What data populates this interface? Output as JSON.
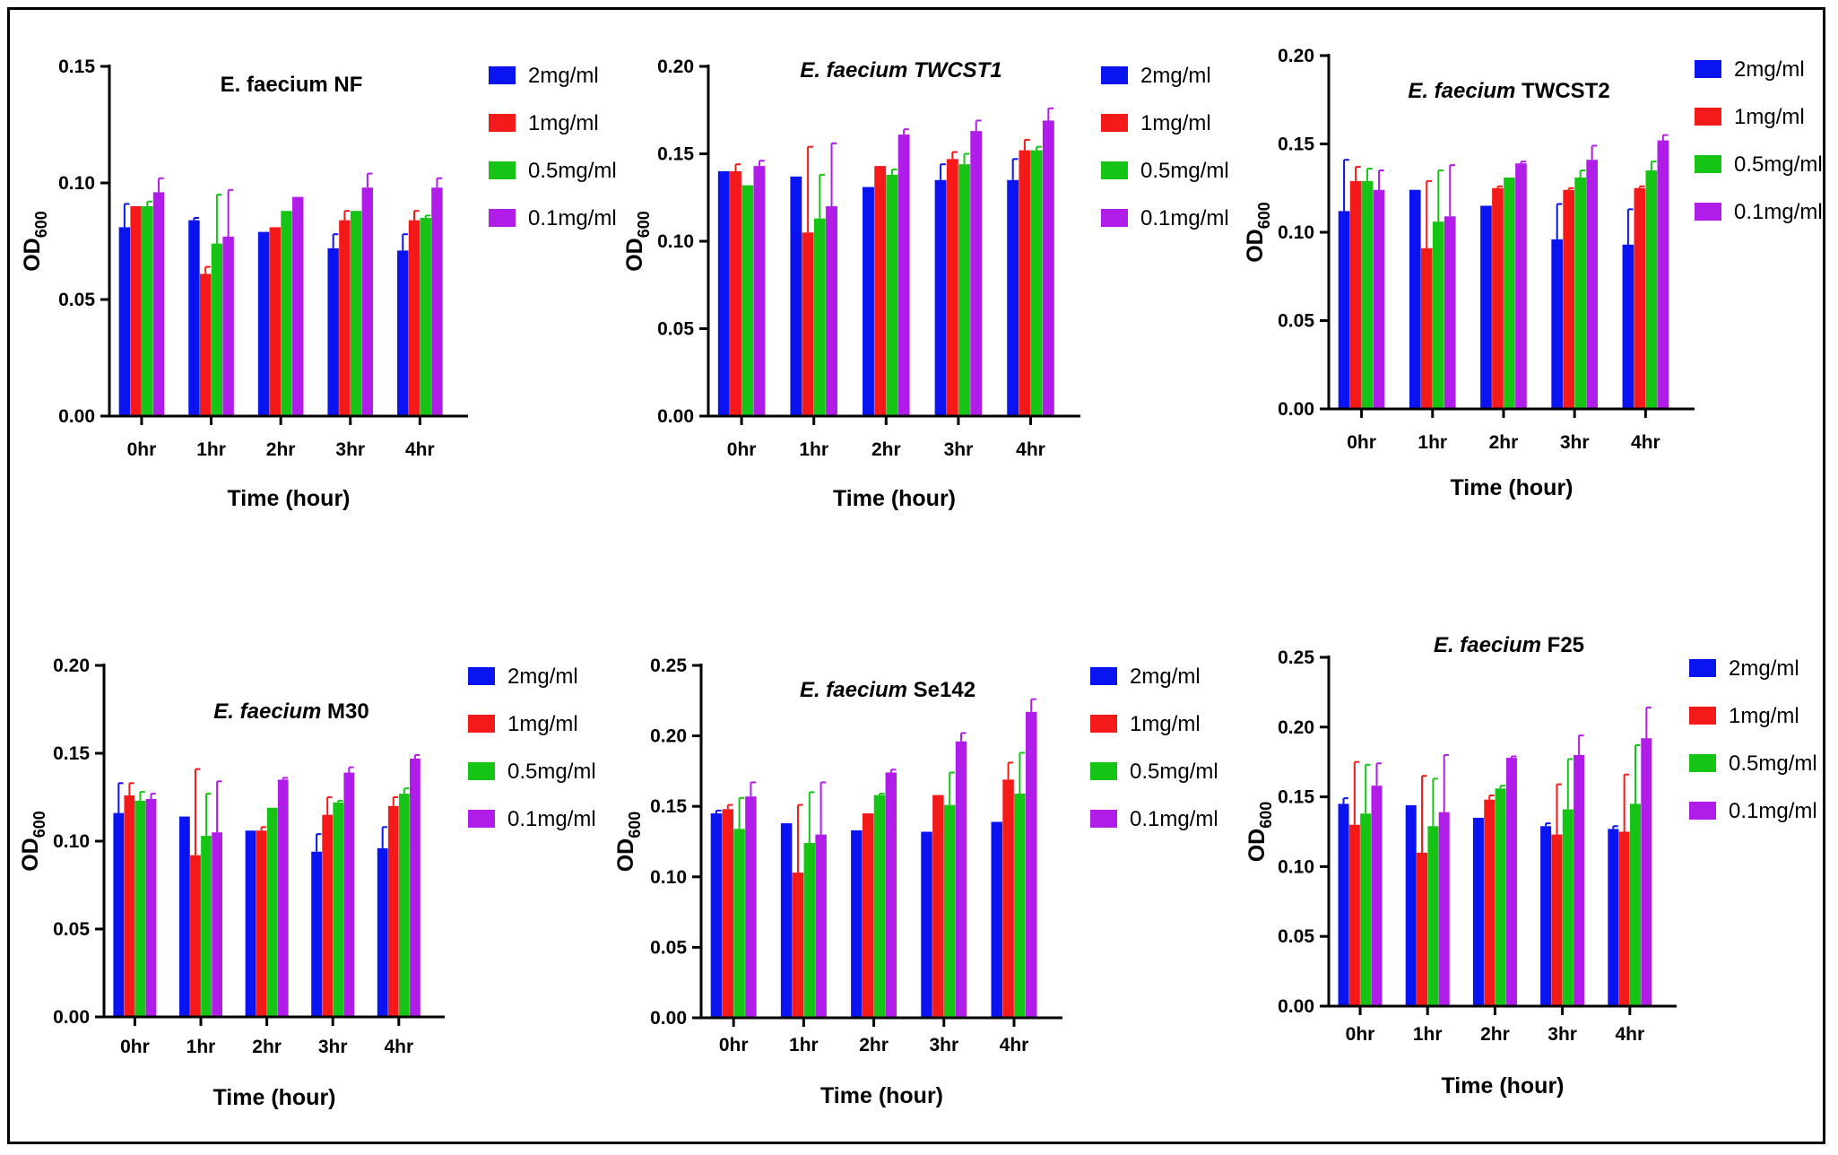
{
  "colors": {
    "2mg/ml": "#0a14f0",
    "1mg/ml": "#f51a1a",
    "0.5mg/ml": "#16c416",
    "0.1mg/ml": "#b01de8"
  },
  "chart_data": [
    {
      "type": "bar",
      "title": {
        "italic": "",
        "normal": "E. faecium NF"
      },
      "xlabel": "Time (hour)",
      "ylabel": "OD600",
      "categories": [
        "0hr",
        "1hr",
        "2hr",
        "3hr",
        "4hr"
      ],
      "ylim": [
        0,
        0.15
      ],
      "yticks": [
        "0.00",
        "0.05",
        "0.10",
        "0.15"
      ],
      "legend_position": "right",
      "series": [
        {
          "name": "2mg/ml",
          "values": [
            0.081,
            0.084,
            0.079,
            0.072,
            0.071
          ],
          "errors": [
            0.01,
            0.001,
            0.0,
            0.006,
            0.007
          ]
        },
        {
          "name": "1mg/ml",
          "values": [
            0.09,
            0.061,
            0.081,
            0.084,
            0.084
          ],
          "errors": [
            0.0,
            0.003,
            0.0,
            0.004,
            0.004
          ]
        },
        {
          "name": "0.5mg/ml",
          "values": [
            0.09,
            0.074,
            0.088,
            0.088,
            0.085
          ],
          "errors": [
            0.002,
            0.021,
            0.0,
            0.0,
            0.001
          ]
        },
        {
          "name": "0.1mg/ml",
          "values": [
            0.096,
            0.077,
            0.094,
            0.098,
            0.098
          ],
          "errors": [
            0.006,
            0.02,
            0.0,
            0.006,
            0.004
          ]
        }
      ]
    },
    {
      "type": "bar",
      "title": {
        "italic": "E. faecium TWCST1",
        "normal": ""
      },
      "xlabel": "Time (hour)",
      "ylabel": "OD600",
      "categories": [
        "0hr",
        "1hr",
        "2hr",
        "3hr",
        "4hr"
      ],
      "ylim": [
        0,
        0.2
      ],
      "yticks": [
        "0.00",
        "0.05",
        "0.10",
        "0.15",
        "0.20"
      ],
      "legend_position": "right",
      "series": [
        {
          "name": "2mg/ml",
          "values": [
            0.14,
            0.137,
            0.131,
            0.135,
            0.135
          ],
          "errors": [
            0.0,
            0.0,
            0.0,
            0.009,
            0.012
          ]
        },
        {
          "name": "1mg/ml",
          "values": [
            0.14,
            0.105,
            0.143,
            0.147,
            0.152
          ],
          "errors": [
            0.004,
            0.049,
            0.0,
            0.004,
            0.006
          ]
        },
        {
          "name": "0.5mg/ml",
          "values": [
            0.132,
            0.113,
            0.138,
            0.144,
            0.152
          ],
          "errors": [
            0.0,
            0.025,
            0.003,
            0.006,
            0.002
          ]
        },
        {
          "name": "0.1mg/ml",
          "values": [
            0.143,
            0.12,
            0.161,
            0.163,
            0.169
          ],
          "errors": [
            0.003,
            0.036,
            0.003,
            0.006,
            0.007
          ]
        }
      ]
    },
    {
      "type": "bar",
      "title": {
        "italic": "E. faecium",
        "normal": "TWCST2"
      },
      "xlabel": "Time (hour)",
      "ylabel": "OD600",
      "categories": [
        "0hr",
        "1hr",
        "2hr",
        "3hr",
        "4hr"
      ],
      "ylim": [
        0,
        0.2
      ],
      "yticks": [
        "0.00",
        "0.05",
        "0.10",
        "0.15",
        "0.20"
      ],
      "legend_position": "right",
      "series": [
        {
          "name": "2mg/ml",
          "values": [
            0.112,
            0.124,
            0.115,
            0.096,
            0.093
          ],
          "errors": [
            0.029,
            0.0,
            0.0,
            0.02,
            0.02
          ]
        },
        {
          "name": "1mg/ml",
          "values": [
            0.129,
            0.091,
            0.125,
            0.124,
            0.125
          ],
          "errors": [
            0.008,
            0.038,
            0.001,
            0.001,
            0.001
          ]
        },
        {
          "name": "0.5mg/ml",
          "values": [
            0.129,
            0.106,
            0.131,
            0.131,
            0.135
          ],
          "errors": [
            0.007,
            0.029,
            0.0,
            0.004,
            0.005
          ]
        },
        {
          "name": "0.1mg/ml",
          "values": [
            0.124,
            0.109,
            0.139,
            0.141,
            0.152
          ],
          "errors": [
            0.011,
            0.029,
            0.001,
            0.008,
            0.003
          ]
        }
      ]
    },
    {
      "type": "bar",
      "title": {
        "italic": "E. faecium",
        "normal": "M30"
      },
      "xlabel": "Time (hour)",
      "ylabel": "OD600",
      "categories": [
        "0hr",
        "1hr",
        "2hr",
        "3hr",
        "4hr"
      ],
      "ylim": [
        0,
        0.2
      ],
      "yticks": [
        "0.00",
        "0.05",
        "0.10",
        "0.15",
        "0.20"
      ],
      "legend_position": "right",
      "series": [
        {
          "name": "2mg/ml",
          "values": [
            0.116,
            0.114,
            0.106,
            0.094,
            0.096
          ],
          "errors": [
            0.017,
            0.0,
            0.0,
            0.01,
            0.012
          ]
        },
        {
          "name": "1mg/ml",
          "values": [
            0.126,
            0.092,
            0.106,
            0.115,
            0.12
          ],
          "errors": [
            0.007,
            0.049,
            0.002,
            0.01,
            0.005
          ]
        },
        {
          "name": "0.5mg/ml",
          "values": [
            0.123,
            0.103,
            0.119,
            0.122,
            0.127
          ],
          "errors": [
            0.005,
            0.024,
            0.0,
            0.001,
            0.003
          ]
        },
        {
          "name": "0.1mg/ml",
          "values": [
            0.124,
            0.105,
            0.135,
            0.139,
            0.147
          ],
          "errors": [
            0.003,
            0.029,
            0.001,
            0.003,
            0.002
          ]
        }
      ]
    },
    {
      "type": "bar",
      "title": {
        "italic": "E. faecium",
        "normal": "Se142"
      },
      "xlabel": "Time (hour)",
      "ylabel": "OD600",
      "categories": [
        "0hr",
        "1hr",
        "2hr",
        "3hr",
        "4hr"
      ],
      "ylim": [
        0,
        0.25
      ],
      "yticks": [
        "0.00",
        "0.05",
        "0.10",
        "0.15",
        "0.20",
        "0.25"
      ],
      "legend_position": "right",
      "series": [
        {
          "name": "2mg/ml",
          "values": [
            0.145,
            0.138,
            0.133,
            0.132,
            0.139
          ],
          "errors": [
            0.002,
            0.0,
            0.0,
            0.0,
            0.0
          ]
        },
        {
          "name": "1mg/ml",
          "values": [
            0.148,
            0.103,
            0.145,
            0.158,
            0.169
          ],
          "errors": [
            0.003,
            0.048,
            0.0,
            0.0,
            0.012
          ]
        },
        {
          "name": "0.5mg/ml",
          "values": [
            0.134,
            0.124,
            0.158,
            0.151,
            0.159
          ],
          "errors": [
            0.022,
            0.036,
            0.001,
            0.023,
            0.029
          ]
        },
        {
          "name": "0.1mg/ml",
          "values": [
            0.157,
            0.13,
            0.174,
            0.196,
            0.217
          ],
          "errors": [
            0.01,
            0.037,
            0.002,
            0.006,
            0.009
          ]
        }
      ]
    },
    {
      "type": "bar",
      "title": {
        "italic": "E. faecium",
        "normal": "F25"
      },
      "xlabel": "Time (hour)",
      "ylabel": "OD600",
      "categories": [
        "0hr",
        "1hr",
        "2hr",
        "3hr",
        "4hr"
      ],
      "ylim": [
        0,
        0.25
      ],
      "yticks": [
        "0.00",
        "0.05",
        "0.10",
        "0.15",
        "0.20",
        "0.25"
      ],
      "legend_position": "right",
      "series": [
        {
          "name": "2mg/ml",
          "values": [
            0.145,
            0.144,
            0.135,
            0.129,
            0.127
          ],
          "errors": [
            0.004,
            0.0,
            0.0,
            0.002,
            0.002
          ]
        },
        {
          "name": "1mg/ml",
          "values": [
            0.13,
            0.11,
            0.148,
            0.123,
            0.125
          ],
          "errors": [
            0.045,
            0.055,
            0.003,
            0.036,
            0.041
          ]
        },
        {
          "name": "0.5mg/ml",
          "values": [
            0.138,
            0.129,
            0.156,
            0.141,
            0.145
          ],
          "errors": [
            0.035,
            0.034,
            0.002,
            0.036,
            0.042
          ]
        },
        {
          "name": "0.1mg/ml",
          "values": [
            0.158,
            0.139,
            0.178,
            0.18,
            0.192
          ],
          "errors": [
            0.016,
            0.041,
            0.001,
            0.014,
            0.022
          ]
        }
      ]
    }
  ]
}
